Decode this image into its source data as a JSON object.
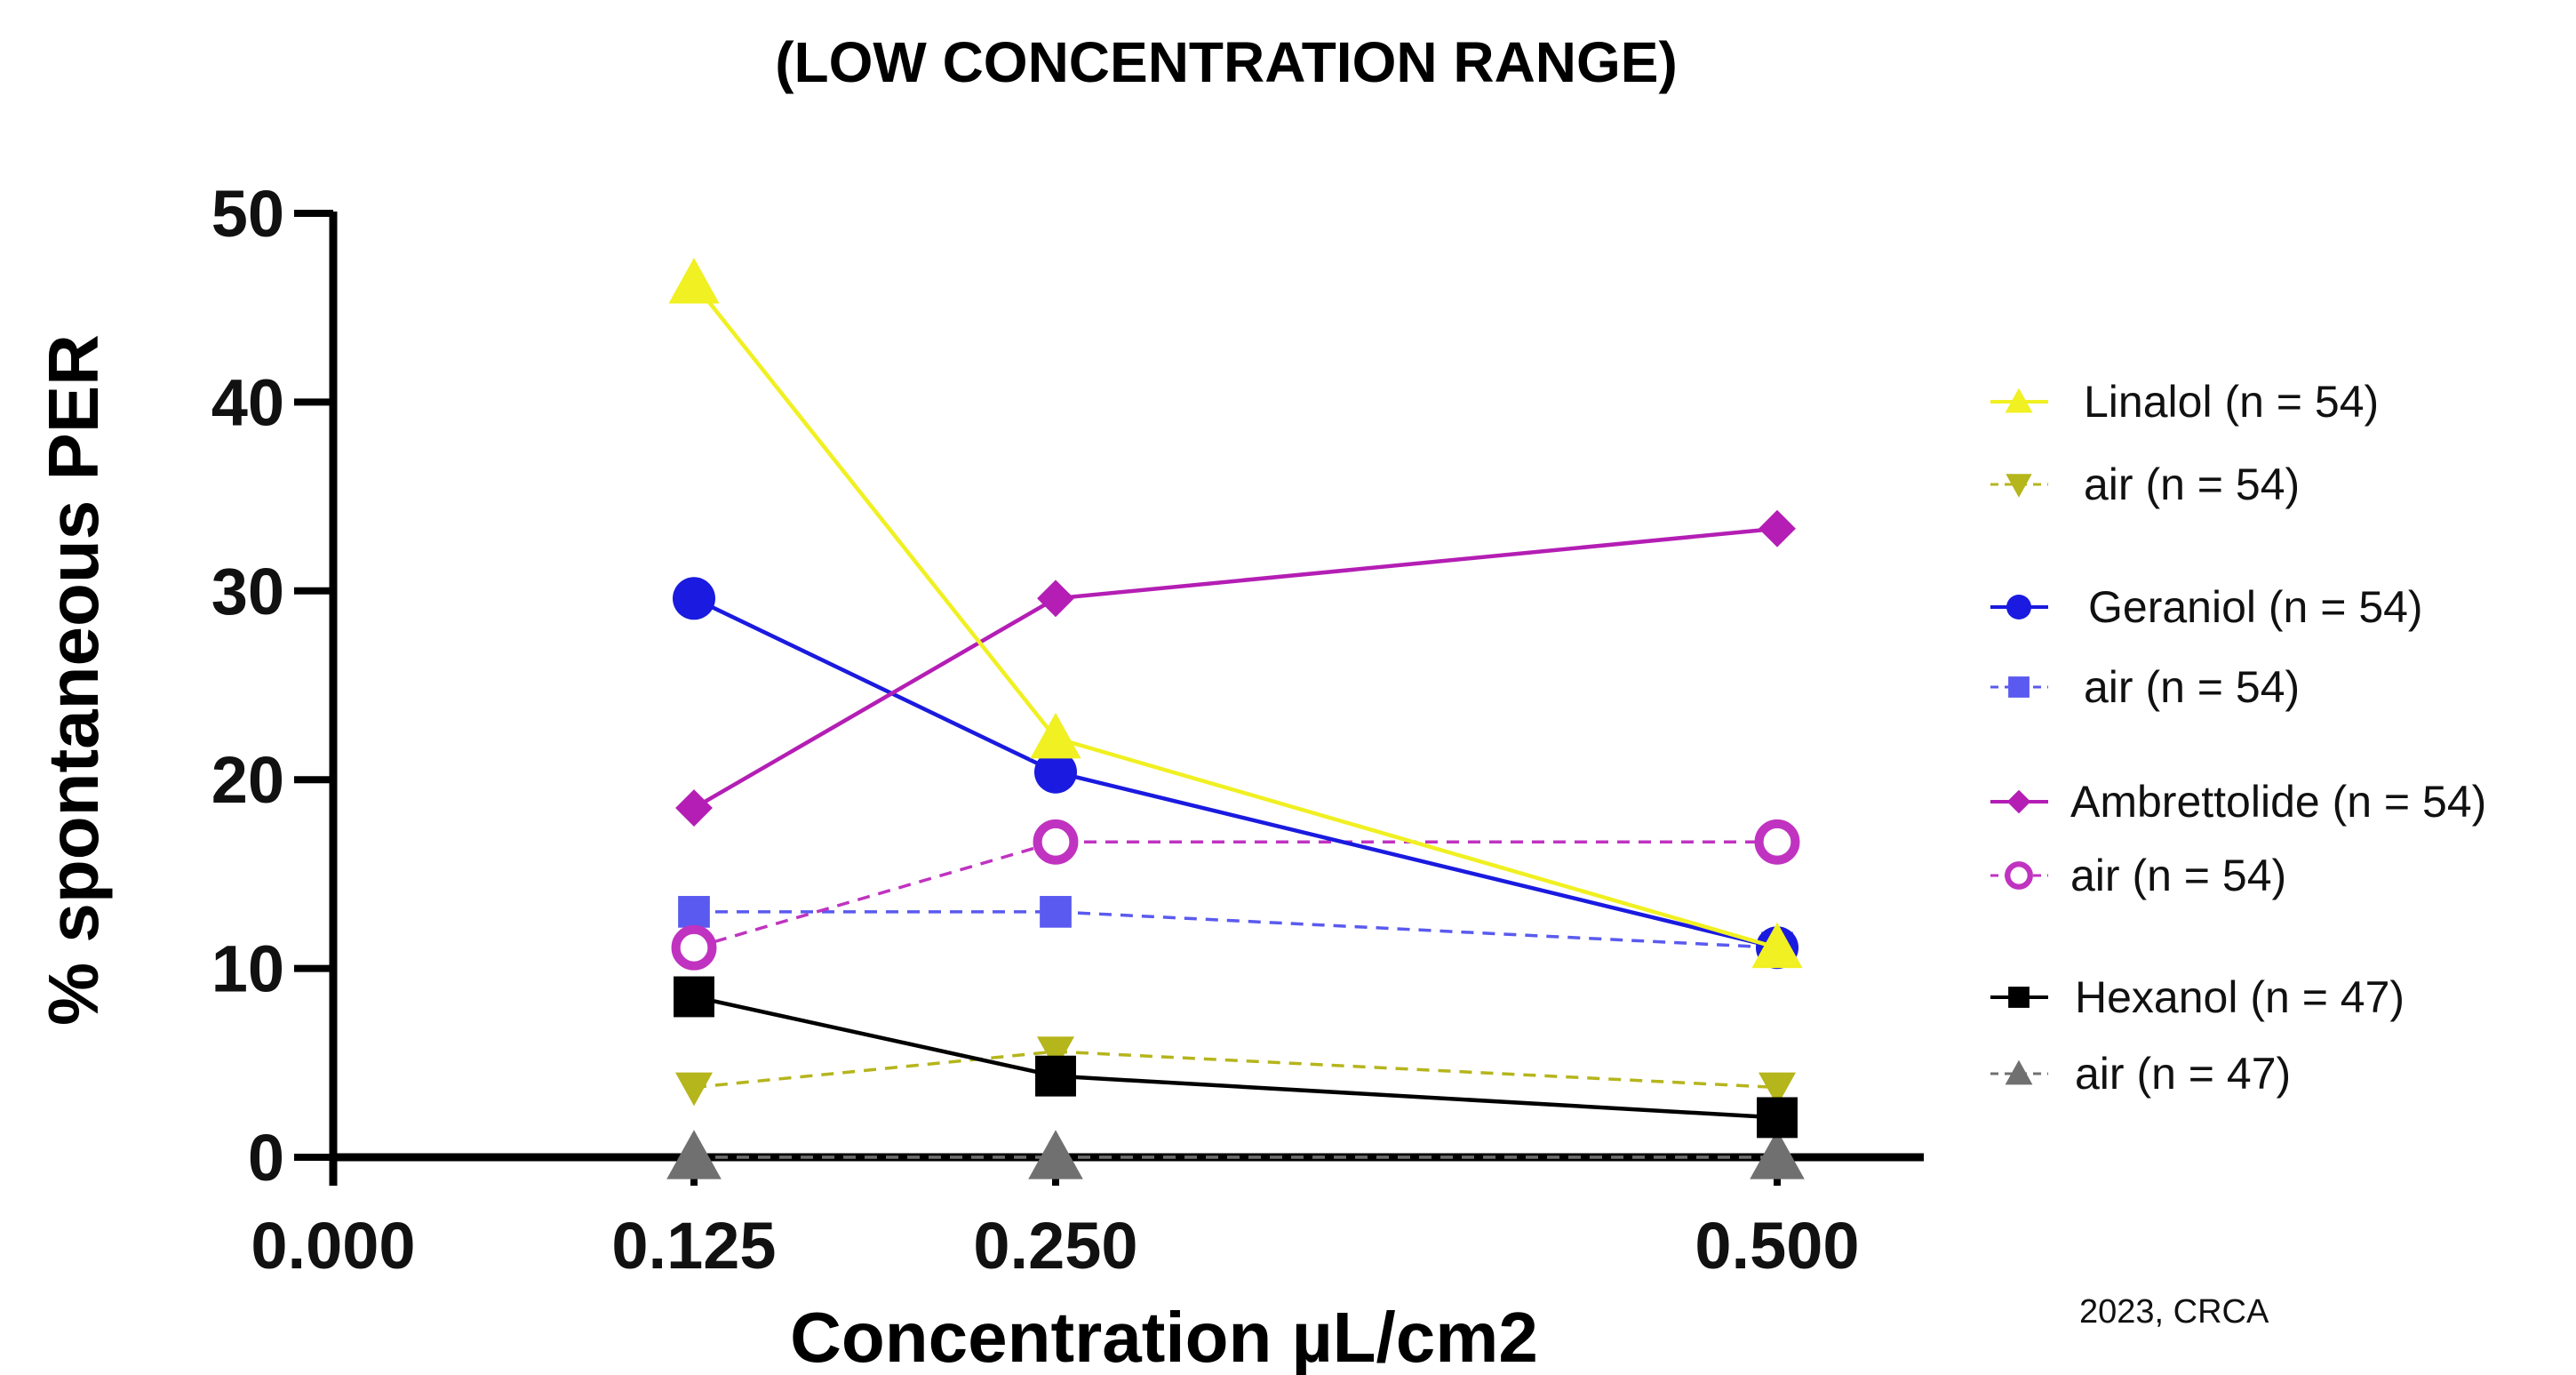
{
  "chart_data": {
    "type": "line",
    "title": "(LOW CONCENTRATION RANGE)",
    "xlabel": "Concentration µL/cm2",
    "ylabel": "% spontaneous PER",
    "x_ticks": [
      "0.000",
      "0.125",
      "0.250",
      "0.500"
    ],
    "x_tick_values": [
      0,
      0.125,
      0.25,
      0.5
    ],
    "y_ticks": [
      "0",
      "10",
      "20",
      "30",
      "40",
      "50"
    ],
    "y_tick_values": [
      0,
      10,
      20,
      30,
      40,
      50
    ],
    "ylim": [
      0,
      50
    ],
    "grid": false,
    "legend_position": "right",
    "x": [
      0.125,
      0.25,
      0.5
    ],
    "series": [
      {
        "name": "Linalol (n = 54)",
        "values": [
          46.3,
          22.2,
          11.1
        ],
        "color": "#f0f022",
        "marker": "triangle-up",
        "dashed": false
      },
      {
        "name": "air (n = 54)",
        "values": [
          3.7,
          5.6,
          3.7
        ],
        "color": "#b5b51c",
        "marker": "triangle-down",
        "dashed": true
      },
      {
        "name": "Geraniol (n = 54)",
        "values": [
          29.6,
          20.4,
          11.1
        ],
        "color": "#1a1ae0",
        "marker": "circle",
        "dashed": false
      },
      {
        "name": "air (n = 54)",
        "values": [
          13.0,
          13.0,
          11.1
        ],
        "color": "#5a5af0",
        "marker": "square",
        "dashed": true
      },
      {
        "name": "Ambrettolide (n = 54)",
        "values": [
          18.5,
          29.6,
          33.3
        ],
        "color": "#b41eb4",
        "marker": "diamond",
        "dashed": false
      },
      {
        "name": "air (n = 54)",
        "values": [
          11.1,
          16.7,
          16.7
        ],
        "color": "#c033c0",
        "marker": "open-circle",
        "dashed": true
      },
      {
        "name": "Hexanol (n = 47)",
        "values": [
          8.5,
          4.3,
          2.1
        ],
        "color": "#000000",
        "marker": "square",
        "dashed": false
      },
      {
        "name": "air (n = 47)",
        "values": [
          0,
          0,
          0
        ],
        "color": "#707070",
        "marker": "triangle-up",
        "dashed": true
      }
    ],
    "annotations": [
      "2023, CRCA"
    ]
  }
}
